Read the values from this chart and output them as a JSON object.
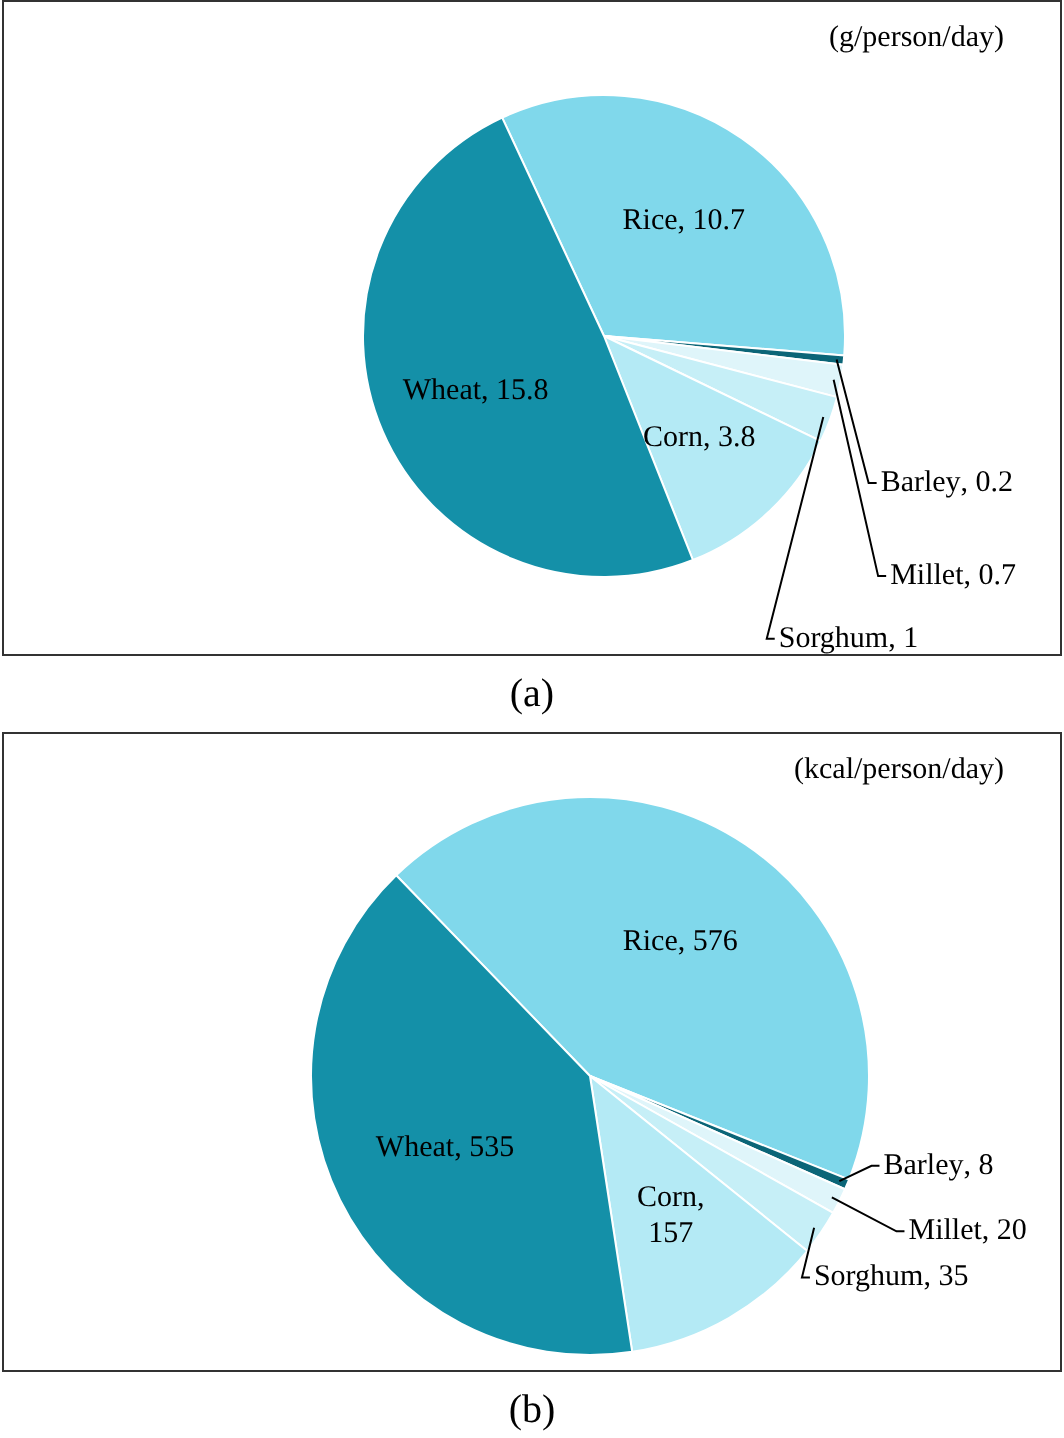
{
  "chart_data": [
    {
      "type": "pie",
      "subtitle": "(g/person/day)",
      "annotations": [
        "(a)"
      ],
      "categories": [
        "Rice",
        "Barley",
        "Millet",
        "Sorghum",
        "Corn",
        "Wheat"
      ],
      "values": [
        10.7,
        0.2,
        0.7,
        1,
        3.8,
        15.8
      ],
      "colors": [
        "#80d8eb",
        "#0b6577",
        "#dff5fa",
        "#c6eff7",
        "#b4eaf5",
        "#1490a8"
      ],
      "value_labels": [
        ", 10.7",
        ", 0.2",
        ", 0.7",
        ", 1",
        ", 3.8",
        ", 15.8"
      ],
      "legend": false
    },
    {
      "type": "pie",
      "subtitle": "(kcal/person/day)",
      "annotations": [
        "(b)"
      ],
      "categories": [
        "Rice",
        "Barley",
        "Millet",
        "Sorghum",
        "Corn",
        "Wheat"
      ],
      "values": [
        576,
        8,
        20,
        35,
        157,
        535
      ],
      "colors": [
        "#80d8eb",
        "#0b6577",
        "#dff5fa",
        "#c6eff7",
        "#b4eaf5",
        "#1490a8"
      ],
      "value_labels": [
        ", 576",
        ", 8",
        ", 20",
        ", 35",
        ", 157",
        ", 535"
      ],
      "legend": false
    }
  ]
}
